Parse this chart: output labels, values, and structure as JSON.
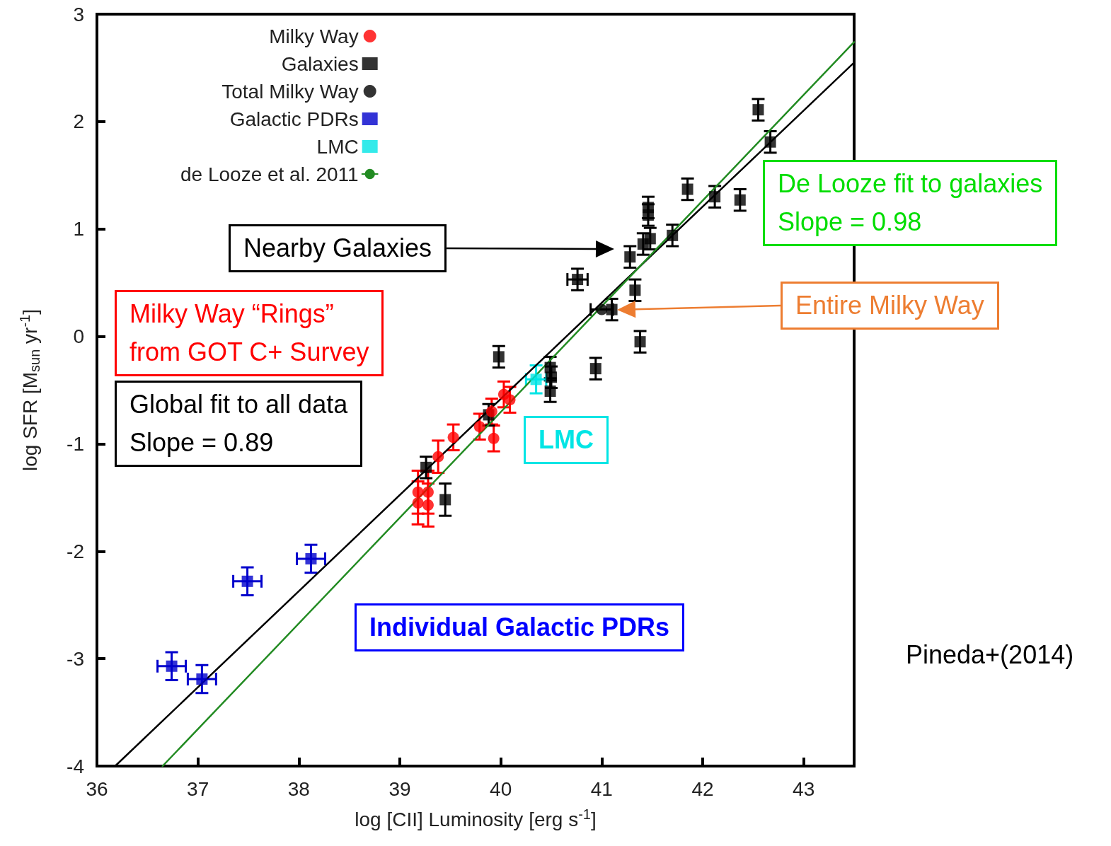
{
  "chart_data": {
    "type": "scatter",
    "xlabel": "log [CII] Luminosity [erg s$^{-1}$]",
    "ylabel": "log SFR [M$_{sun}$ yr$^{-1}$]",
    "xlim": [
      36,
      43.5
    ],
    "xticks": [
      36,
      37,
      38,
      39,
      40,
      41,
      42,
      43
    ],
    "ylim": [
      -4,
      3
    ],
    "yticks": [
      -4,
      -3,
      -2,
      -1,
      0,
      1,
      2,
      3
    ],
    "grid": false,
    "legend": "top left",
    "series": [
      {
        "name": "Milky Way",
        "color": "#ff0000",
        "marker": "circle",
        "x": [
          40.03,
          40.09,
          39.91,
          39.79,
          39.93,
          39.53,
          39.38,
          39.18,
          39.28,
          39.18,
          39.28
        ],
        "values": [
          -0.54,
          -0.59,
          -0.7,
          -0.84,
          -0.95,
          -0.94,
          -1.12,
          -1.45,
          -1.45,
          -1.55,
          -1.57
        ],
        "errors": [
          0.12,
          0.12,
          0.12,
          0.12,
          0.12,
          0.12,
          0.15,
          0.2,
          0.2,
          0.2,
          0.2
        ]
      },
      {
        "name": "Galaxies",
        "color": "#000000",
        "marker": "square",
        "x": [
          42.55,
          42.67,
          41.85,
          42.12,
          42.37,
          41.46,
          41.46,
          41.48,
          41.41,
          41.7,
          41.28,
          40.76,
          41.33,
          41.1,
          41.38,
          39.98,
          40.94,
          40.49,
          40.5,
          40.49,
          39.88,
          39.26,
          39.45
        ],
        "values": [
          2.11,
          1.81,
          1.37,
          1.3,
          1.27,
          1.2,
          1.13,
          0.91,
          0.86,
          0.94,
          0.74,
          0.53,
          0.43,
          0.25,
          -0.05,
          -0.19,
          -0.3,
          -0.29,
          -0.38,
          -0.51,
          -0.73,
          -1.22,
          -1.52
        ],
        "errors": [
          0.1,
          0.1,
          0.1,
          0.1,
          0.1,
          0.1,
          0.1,
          0.1,
          0.1,
          0.1,
          0.1,
          0.1,
          0.1,
          0.1,
          0.1,
          0.1,
          0.1,
          0.1,
          0.1,
          0.1,
          0.1,
          0.1,
          0.15
        ],
        "xerrors": [
          null,
          null,
          null,
          null,
          null,
          null,
          null,
          null,
          null,
          null,
          null,
          0.1,
          null,
          null,
          null,
          null,
          null,
          null,
          null,
          null,
          null,
          null,
          null
        ]
      },
      {
        "name": "Total Milky Way",
        "color": "#000000",
        "marker": "circle",
        "x": [
          41.0
        ],
        "values": [
          0.25
        ],
        "xerrors": [
          0.11
        ]
      },
      {
        "name": "Galactic PDRs",
        "color": "#0000cc",
        "marker": "square",
        "x": [
          36.74,
          37.04,
          37.49,
          38.12
        ],
        "values": [
          -3.07,
          -3.19,
          -2.28,
          -2.07
        ],
        "errors": [
          0.13,
          0.13,
          0.13,
          0.13
        ],
        "xerrors": [
          0.14,
          0.14,
          0.14,
          0.14
        ]
      },
      {
        "name": "LMC",
        "color": "#00e5e5",
        "marker": "square",
        "x": [
          40.35
        ],
        "values": [
          -0.4
        ],
        "errors": [
          0.13
        ],
        "xerrors": [
          0.1
        ]
      },
      {
        "name": "de Looze et al. 2011",
        "type": "line",
        "color": "#228b22",
        "marker": "none",
        "line_style": "solid",
        "x": [
          36.65,
          43.5
        ],
        "values": [
          -4,
          2.74
        ]
      },
      {
        "type": "line",
        "color": "#000000",
        "marker": "none",
        "line_style": "solid",
        "x": [
          36.18,
          43.5
        ],
        "values": [
          -4,
          2.55
        ]
      }
    ],
    "annotations": [
      "Nearby Galaxies",
      "Entire Milky Way",
      "De Looze fit to galaxies\nSlope = 0.98",
      "Global fit to all data\nSlope = 0.89",
      "Milky Way “Rings”\nfrom GOT C+ Survey",
      "LMC",
      "Individual Galactic PDRs",
      "Pineda+(2014)"
    ]
  }
}
